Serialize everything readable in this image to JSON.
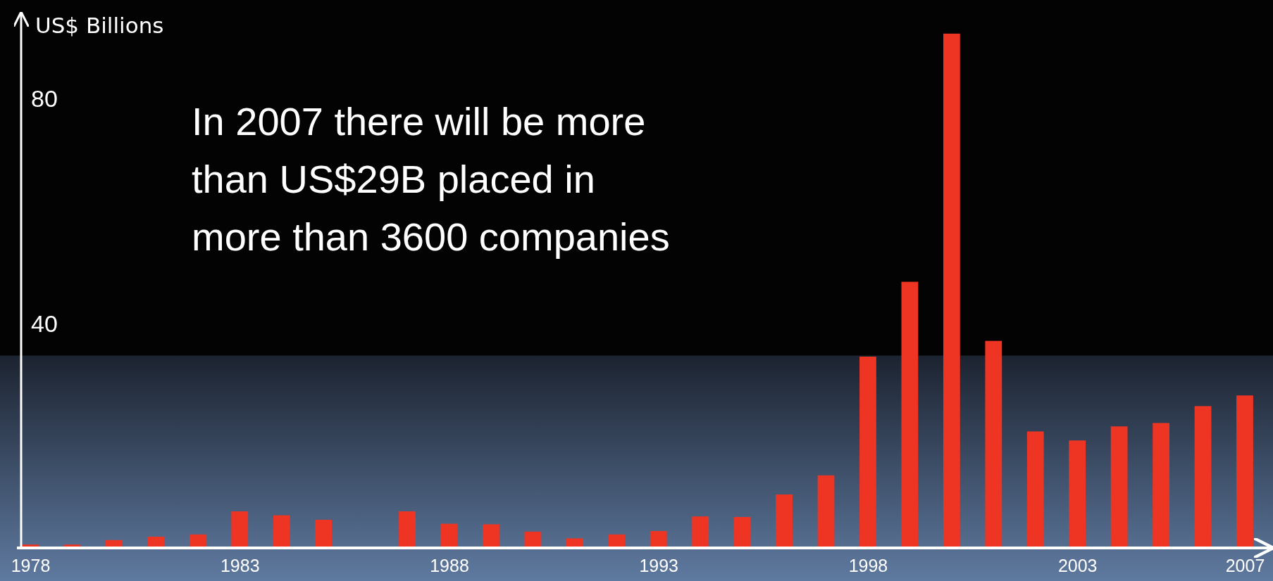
{
  "chart_data": {
    "type": "bar",
    "ylabel": "US$ Billions",
    "categories": [
      "1978",
      null,
      null,
      null,
      null,
      "1983",
      null,
      null,
      null,
      null,
      "1988",
      null,
      null,
      null,
      null,
      "1993",
      null,
      null,
      null,
      null,
      "1998",
      null,
      null,
      null,
      null,
      "2003",
      null,
      null,
      null,
      "2007"
    ],
    "values": [
      0.6,
      0.6,
      1.4,
      2.0,
      2.4,
      6.5,
      5.8,
      5.0,
      null,
      6.5,
      4.3,
      4.2,
      2.9,
      1.7,
      2.4,
      3.0,
      5.6,
      5.5,
      9.5,
      12.9,
      34.0,
      47.3,
      91.4,
      36.8,
      20.7,
      19.1,
      21.6,
      22.2,
      25.2,
      27.1
    ],
    "color": "#ee3524",
    "ylim": [
      0,
      95
    ],
    "yticks": [
      40,
      80
    ],
    "annotations": [
      "In 2007 there will be more than US$29B placed in more than 3600 companies"
    ]
  }
}
